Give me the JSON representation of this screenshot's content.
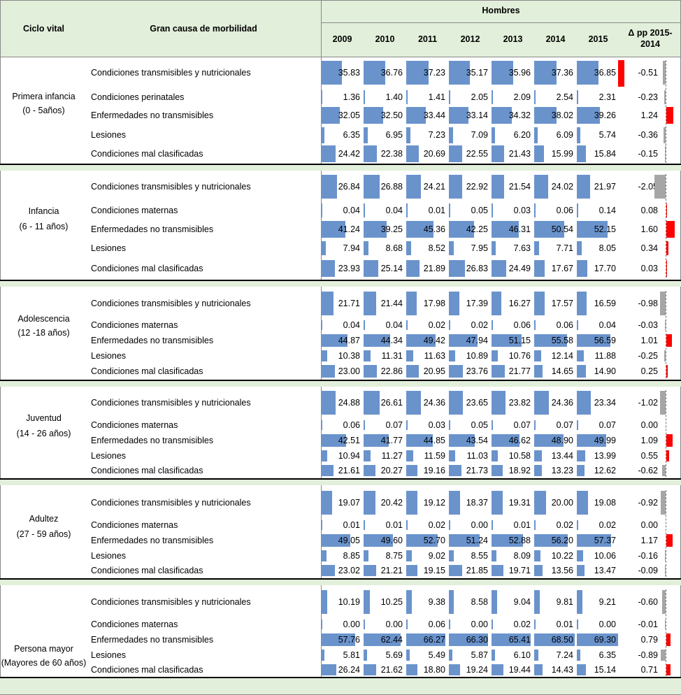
{
  "header": {
    "col_ciclo": "Ciclo vital",
    "col_causa": "Gran causa de morbilidad",
    "group": "Hombres",
    "years": [
      "2009",
      "2010",
      "2011",
      "2012",
      "2013",
      "2014",
      "2015"
    ],
    "delta_line1": "Δ pp 2015-",
    "delta_line2": "2014"
  },
  "colors": {
    "bar": "#6a93cc",
    "header_bg": "#e2efda",
    "delta_up": "#ff0000",
    "delta_down": "#a6a6a6"
  },
  "groups": [
    {
      "name_line1": "Primera infancia",
      "name_line2": "(0 - 5años)",
      "rows": [
        {
          "cause": "Condiciones transmisibles y nutricionales",
          "values": [
            "35.83",
            "36.76",
            "37.23",
            "35.17",
            "35.96",
            "37.36",
            "36.85"
          ],
          "delta": "-0.51"
        },
        {
          "cause": "Condiciones perinatales",
          "values": [
            "1.36",
            "1.40",
            "1.41",
            "2.05",
            "2.09",
            "2.54",
            "2.31"
          ],
          "delta": "-0.23"
        },
        {
          "cause": "Enfermedades no transmisibles",
          "values": [
            "32.05",
            "32.50",
            "33.44",
            "33.14",
            "34.32",
            "38.02",
            "39.26"
          ],
          "delta": "1.24"
        },
        {
          "cause": "Lesiones",
          "values": [
            "6.35",
            "6.95",
            "7.23",
            "7.09",
            "6.20",
            "6.09",
            "5.74"
          ],
          "delta": "-0.36"
        },
        {
          "cause": "Condiciones mal clasificadas",
          "values": [
            "24.42",
            "22.38",
            "20.69",
            "22.55",
            "21.43",
            "15.99",
            "15.84"
          ],
          "delta": "-0.15"
        }
      ]
    },
    {
      "name_line1": "Infancia",
      "name_line2": "(6 - 11 años)",
      "rows": [
        {
          "cause": "Condiciones transmisibles y nutricionales",
          "values": [
            "26.84",
            "26.88",
            "24.21",
            "22.92",
            "21.54",
            "24.02",
            "21.97"
          ],
          "delta": "-2.05"
        },
        {
          "cause": "Condiciones maternas",
          "values": [
            "0.04",
            "0.04",
            "0.01",
            "0.05",
            "0.03",
            "0.06",
            "0.14"
          ],
          "delta": "0.08"
        },
        {
          "cause": "Enfermedades no transmisibles",
          "values": [
            "41.24",
            "39.25",
            "45.36",
            "42.25",
            "46.31",
            "50.54",
            "52.15"
          ],
          "delta": "1.60"
        },
        {
          "cause": "Lesiones",
          "values": [
            "7.94",
            "8.68",
            "8.52",
            "7.95",
            "7.63",
            "7.71",
            "8.05"
          ],
          "delta": "0.34"
        },
        {
          "cause": "Condiciones mal clasificadas",
          "values": [
            "23.93",
            "25.14",
            "21.89",
            "26.83",
            "24.49",
            "17.67",
            "17.70"
          ],
          "delta": "0.03"
        }
      ]
    },
    {
      "name_line1": "Adolescencia",
      "name_line2": "(12 -18 años)",
      "rows": [
        {
          "cause": "Condiciones transmisibles y nutricionales",
          "values": [
            "21.71",
            "21.44",
            "17.98",
            "17.39",
            "16.27",
            "17.57",
            "16.59"
          ],
          "delta": "-0.98"
        },
        {
          "cause": "Condiciones maternas",
          "values": [
            "0.04",
            "0.04",
            "0.02",
            "0.02",
            "0.06",
            "0.06",
            "0.04"
          ],
          "delta": "-0.03"
        },
        {
          "cause": "Enfermedades no transmisibles",
          "values": [
            "44.87",
            "44.34",
            "49.42",
            "47.94",
            "51.15",
            "55.58",
            "56.59"
          ],
          "delta": "1.01"
        },
        {
          "cause": "Lesiones",
          "values": [
            "10.38",
            "11.31",
            "11.63",
            "10.89",
            "10.76",
            "12.14",
            "11.88"
          ],
          "delta": "-0.25"
        },
        {
          "cause": "Condiciones mal clasificadas",
          "values": [
            "23.00",
            "22.86",
            "20.95",
            "23.76",
            "21.77",
            "14.65",
            "14.90"
          ],
          "delta": "0.25"
        }
      ]
    },
    {
      "name_line1": "Juventud",
      "name_line2": "(14 - 26 años)",
      "rows": [
        {
          "cause": "Condiciones transmisibles y nutricionales",
          "values": [
            "24.88",
            "26.61",
            "24.36",
            "23.65",
            "23.82",
            "24.36",
            "23.34"
          ],
          "delta": "-1.02"
        },
        {
          "cause": "Condiciones maternas",
          "values": [
            "0.06",
            "0.07",
            "0.03",
            "0.05",
            "0.07",
            "0.07",
            "0.07"
          ],
          "delta": "0.00"
        },
        {
          "cause": "Enfermedades no transmisibles",
          "values": [
            "42.51",
            "41.77",
            "44.85",
            "43.54",
            "46.62",
            "48.90",
            "49.99"
          ],
          "delta": "1.09"
        },
        {
          "cause": "Lesiones",
          "values": [
            "10.94",
            "11.27",
            "11.59",
            "11.03",
            "10.58",
            "13.44",
            "13.99"
          ],
          "delta": "0.55"
        },
        {
          "cause": "Condiciones mal clasificadas",
          "values": [
            "21.61",
            "20.27",
            "19.16",
            "21.73",
            "18.92",
            "13.23",
            "12.62"
          ],
          "delta": "-0.62"
        }
      ]
    },
    {
      "name_line1": "Adultez",
      "name_line2": "(27 - 59 años)",
      "rows": [
        {
          "cause": "Condiciones transmisibles y nutricionales",
          "values": [
            "19.07",
            "20.42",
            "19.12",
            "18.37",
            "19.31",
            "20.00",
            "19.08"
          ],
          "delta": "-0.92"
        },
        {
          "cause": "Condiciones maternas",
          "values": [
            "0.01",
            "0.01",
            "0.02",
            "0.00",
            "0.01",
            "0.02",
            "0.02"
          ],
          "delta": "0.00"
        },
        {
          "cause": "Enfermedades no transmisibles",
          "values": [
            "49.05",
            "49.60",
            "52.70",
            "51.24",
            "52.88",
            "56.20",
            "57.37"
          ],
          "delta": "1.17"
        },
        {
          "cause": "Lesiones",
          "values": [
            "8.85",
            "8.75",
            "9.02",
            "8.55",
            "8.09",
            "10.22",
            "10.06"
          ],
          "delta": "-0.16"
        },
        {
          "cause": "Condiciones mal clasificadas",
          "values": [
            "23.02",
            "21.21",
            "19.15",
            "21.85",
            "19.71",
            "13.56",
            "13.47"
          ],
          "delta": "-0.09"
        }
      ]
    },
    {
      "name_line1": "Persona mayor",
      "name_line2": "(Mayores de 60 años)",
      "rows": [
        {
          "cause": "Condiciones transmisibles y nutricionales",
          "values": [
            "10.19",
            "10.25",
            "9.38",
            "8.58",
            "9.04",
            "9.81",
            "9.21"
          ],
          "delta": "-0.60"
        },
        {
          "cause": "Condiciones maternas",
          "values": [
            "0.00",
            "0.00",
            "0.06",
            "0.00",
            "0.02",
            "0.01",
            "0.00"
          ],
          "delta": "-0.01"
        },
        {
          "cause": "Enfermedades no transmisibles",
          "values": [
            "57.76",
            "62.44",
            "66.27",
            "66.30",
            "65.41",
            "68.50",
            "69.30"
          ],
          "delta": "0.79"
        },
        {
          "cause": "Lesiones",
          "values": [
            "5.81",
            "5.69",
            "5.49",
            "5.87",
            "6.10",
            "7.24",
            "6.35"
          ],
          "delta": "-0.89"
        },
        {
          "cause": "Condiciones mal clasificadas",
          "values": [
            "26.24",
            "21.62",
            "18.80",
            "19.24",
            "19.44",
            "14.43",
            "15.14"
          ],
          "delta": "0.71"
        }
      ]
    }
  ]
}
